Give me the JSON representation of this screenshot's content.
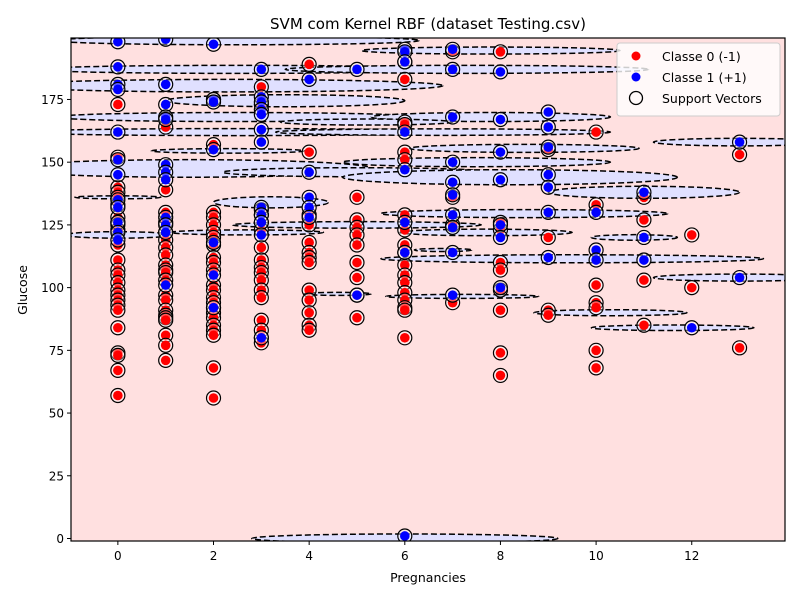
{
  "chart_data": {
    "type": "scatter",
    "title": "SVM com Kernel RBF (dataset Testing.csv)",
    "xlabel": "Pregnancies",
    "ylabel": "Glucose",
    "xlim": [
      -0.98,
      13.95
    ],
    "ylim": [
      -1,
      199.5
    ],
    "xticks": [
      0,
      2,
      4,
      6,
      8,
      10,
      12
    ],
    "yticks": [
      0,
      25,
      50,
      75,
      100,
      125,
      150,
      175
    ],
    "grid": false,
    "legend": {
      "placement": "top-right",
      "entries": [
        {
          "label": "Classe 0 (-1)",
          "marker": "dot",
          "color": "#ff0000"
        },
        {
          "label": "Classe 1 (+1)",
          "marker": "dot",
          "color": "#0000ff"
        },
        {
          "label": "Support Vectors",
          "marker": "ring",
          "color": "#000000"
        }
      ]
    },
    "colors": {
      "class0": "#ff0000",
      "class1": "#0000ff",
      "region0": "#ffe0e0",
      "region1": "#e0e0ff",
      "boundary": "#000000"
    },
    "decision_regions_class1": [
      {
        "cx": 2.5,
        "cy": 198.5,
        "rx": 3.8,
        "ry": 1.7
      },
      {
        "cx": 7.8,
        "cy": 194.5,
        "rx": 2.7,
        "ry": 1.4
      },
      {
        "cx": 2.5,
        "cy": 187,
        "rx": 4.2,
        "ry": 1.6
      },
      {
        "cx": 7.3,
        "cy": 187,
        "rx": 3.8,
        "ry": 1.6
      },
      {
        "cx": 2.3,
        "cy": 180.5,
        "rx": 4.5,
        "ry": 2.5
      },
      {
        "cx": 3.5,
        "cy": 174.5,
        "rx": 2.5,
        "ry": 2.4
      },
      {
        "cx": 2.5,
        "cy": 168,
        "rx": 3.8,
        "ry": 1.8
      },
      {
        "cx": 7.8,
        "cy": 168,
        "rx": 2.5,
        "ry": 1.8
      },
      {
        "cx": 5.2,
        "cy": 166,
        "rx": 1.8,
        "ry": 1.2
      },
      {
        "cx": 2.5,
        "cy": 162,
        "rx": 4.5,
        "ry": 1.4
      },
      {
        "cx": 6.8,
        "cy": 162,
        "rx": 3.5,
        "ry": 1.3
      },
      {
        "cx": 13.0,
        "cy": 158,
        "rx": 1.8,
        "ry": 1.5
      },
      {
        "cx": 8.5,
        "cy": 155.5,
        "rx": 2.4,
        "ry": 1.6
      },
      {
        "cx": 2.3,
        "cy": 154.5,
        "rx": 1.6,
        "ry": 0.9
      },
      {
        "cx": 1.5,
        "cy": 147.5,
        "rx": 3.8,
        "ry": 3.5
      },
      {
        "cx": 5.0,
        "cy": 146,
        "rx": 2.8,
        "ry": 1.8
      },
      {
        "cx": 7.5,
        "cy": 150,
        "rx": 2.8,
        "ry": 1.8
      },
      {
        "cx": 8.2,
        "cy": 144,
        "rx": 3.5,
        "ry": 3.0
      },
      {
        "cx": 11.0,
        "cy": 138,
        "rx": 2.0,
        "ry": 2.4
      },
      {
        "cx": 3.2,
        "cy": 134,
        "rx": 1.2,
        "ry": 2.2
      },
      {
        "cx": 0.0,
        "cy": 136,
        "rx": 0.9,
        "ry": 0.6
      },
      {
        "cx": 8.5,
        "cy": 129.5,
        "rx": 3.0,
        "ry": 1.6
      },
      {
        "cx": 5.0,
        "cy": 125,
        "rx": 2.6,
        "ry": 1.3
      },
      {
        "cx": 7.7,
        "cy": 122,
        "rx": 1.8,
        "ry": 1.3
      },
      {
        "cx": 2.7,
        "cy": 122,
        "rx": 1.6,
        "ry": 1.0
      },
      {
        "cx": 0.0,
        "cy": 121,
        "rx": 1.1,
        "ry": 1.3
      },
      {
        "cx": 10.8,
        "cy": 120,
        "rx": 0.9,
        "ry": 1.1
      },
      {
        "cx": 9.5,
        "cy": 111.5,
        "rx": 4.0,
        "ry": 1.6
      },
      {
        "cx": 6.8,
        "cy": 115,
        "rx": 0.6,
        "ry": 0.6
      },
      {
        "cx": 13.0,
        "cy": 104,
        "rx": 1.8,
        "ry": 1.4
      },
      {
        "cx": 7.2,
        "cy": 96.5,
        "rx": 1.6,
        "ry": 0.8
      },
      {
        "cx": 4.6,
        "cy": 97.5,
        "rx": 0.7,
        "ry": 0.6
      },
      {
        "cx": 10.3,
        "cy": 90,
        "rx": 1.6,
        "ry": 1.2
      },
      {
        "cx": 11.6,
        "cy": 84,
        "rx": 1.7,
        "ry": 1.1
      },
      {
        "cx": 6.0,
        "cy": 0,
        "rx": 3.2,
        "ry": 1.8
      }
    ],
    "series": [
      {
        "name": "Classe 0 (-1)",
        "color": "#ff0000",
        "points": [
          [
            0,
            173
          ],
          [
            0,
            152
          ],
          [
            0,
            140
          ],
          [
            0,
            138
          ],
          [
            0,
            136
          ],
          [
            0,
            133
          ],
          [
            0,
            128
          ],
          [
            0,
            126
          ],
          [
            0,
            125
          ],
          [
            0,
            123
          ],
          [
            0,
            117
          ],
          [
            0,
            111
          ],
          [
            0,
            107
          ],
          [
            0,
            105
          ],
          [
            0,
            102
          ],
          [
            0,
            99
          ],
          [
            0,
            97
          ],
          [
            0,
            95
          ],
          [
            0,
            93
          ],
          [
            0,
            91
          ],
          [
            0,
            84
          ],
          [
            0,
            74
          ],
          [
            0,
            73
          ],
          [
            0,
            67
          ],
          [
            0,
            57
          ],
          [
            1,
            164
          ],
          [
            1,
            139
          ],
          [
            1,
            130
          ],
          [
            1,
            126
          ],
          [
            1,
            122
          ],
          [
            1,
            119
          ],
          [
            1,
            116
          ],
          [
            1,
            113
          ],
          [
            1,
            109
          ],
          [
            1,
            107
          ],
          [
            1,
            106
          ],
          [
            1,
            103
          ],
          [
            1,
            97
          ],
          [
            1,
            95
          ],
          [
            1,
            91
          ],
          [
            1,
            89
          ],
          [
            1,
            88
          ],
          [
            1,
            87
          ],
          [
            1,
            81
          ],
          [
            1,
            77
          ],
          [
            1,
            71
          ],
          [
            2,
            175
          ],
          [
            2,
            157
          ],
          [
            2,
            130
          ],
          [
            2,
            128
          ],
          [
            2,
            125
          ],
          [
            2,
            122
          ],
          [
            2,
            120
          ],
          [
            2,
            117
          ],
          [
            2,
            112
          ],
          [
            2,
            110
          ],
          [
            2,
            107
          ],
          [
            2,
            101
          ],
          [
            2,
            99
          ],
          [
            2,
            96
          ],
          [
            2,
            94
          ],
          [
            2,
            92
          ],
          [
            2,
            90
          ],
          [
            2,
            88
          ],
          [
            2,
            85
          ],
          [
            2,
            83
          ],
          [
            2,
            81
          ],
          [
            2,
            68
          ],
          [
            2,
            56
          ],
          [
            3,
            180
          ],
          [
            3,
            173
          ],
          [
            3,
            131
          ],
          [
            3,
            129
          ],
          [
            3,
            126
          ],
          [
            3,
            123
          ],
          [
            3,
            116
          ],
          [
            3,
            111
          ],
          [
            3,
            108
          ],
          [
            3,
            106
          ],
          [
            3,
            103
          ],
          [
            3,
            99
          ],
          [
            3,
            96
          ],
          [
            3,
            87
          ],
          [
            3,
            83
          ],
          [
            3,
            80
          ],
          [
            3,
            78
          ],
          [
            4,
            189
          ],
          [
            4,
            154
          ],
          [
            4,
            129
          ],
          [
            4,
            125
          ],
          [
            4,
            118
          ],
          [
            4,
            114
          ],
          [
            4,
            112
          ],
          [
            4,
            110
          ],
          [
            4,
            99
          ],
          [
            4,
            95
          ],
          [
            4,
            90
          ],
          [
            4,
            85
          ],
          [
            4,
            83
          ],
          [
            5,
            136
          ],
          [
            5,
            127
          ],
          [
            5,
            124
          ],
          [
            5,
            121
          ],
          [
            5,
            117
          ],
          [
            5,
            110
          ],
          [
            5,
            104
          ],
          [
            5,
            97
          ],
          [
            5,
            88
          ],
          [
            6,
            190
          ],
          [
            6,
            183
          ],
          [
            6,
            166
          ],
          [
            6,
            165
          ],
          [
            6,
            154
          ],
          [
            6,
            151
          ],
          [
            6,
            129
          ],
          [
            6,
            123
          ],
          [
            6,
            117
          ],
          [
            6,
            114
          ],
          [
            6,
            109
          ],
          [
            6,
            105
          ],
          [
            6,
            102
          ],
          [
            6,
            98
          ],
          [
            6,
            95
          ],
          [
            6,
            92
          ],
          [
            6,
            91
          ],
          [
            6,
            80
          ],
          [
            7,
            194
          ],
          [
            7,
            136
          ],
          [
            7,
            125
          ],
          [
            7,
            94
          ],
          [
            8,
            194
          ],
          [
            8,
            126
          ],
          [
            8,
            123
          ],
          [
            8,
            110
          ],
          [
            8,
            107
          ],
          [
            8,
            99
          ],
          [
            8,
            91
          ],
          [
            8,
            74
          ],
          [
            8,
            65
          ],
          [
            9,
            155
          ],
          [
            9,
            120
          ],
          [
            9,
            91
          ],
          [
            9,
            89
          ],
          [
            10,
            162
          ],
          [
            10,
            133
          ],
          [
            10,
            101
          ],
          [
            10,
            94
          ],
          [
            10,
            92
          ],
          [
            10,
            75
          ],
          [
            10,
            68
          ],
          [
            11,
            136
          ],
          [
            11,
            127
          ],
          [
            11,
            103
          ],
          [
            11,
            85
          ],
          [
            12,
            121
          ],
          [
            12,
            100
          ],
          [
            13,
            153
          ],
          [
            13,
            76
          ]
        ]
      },
      {
        "name": "Classe 1 (+1)",
        "color": "#0000ff",
        "points": [
          [
            0,
            198
          ],
          [
            0,
            188
          ],
          [
            0,
            181
          ],
          [
            0,
            179
          ],
          [
            0,
            162
          ],
          [
            0,
            151
          ],
          [
            0,
            145
          ],
          [
            0,
            135
          ],
          [
            0,
            132
          ],
          [
            0,
            126
          ],
          [
            0,
            122
          ],
          [
            0,
            119
          ],
          [
            1,
            199
          ],
          [
            1,
            181
          ],
          [
            1,
            173
          ],
          [
            1,
            168
          ],
          [
            1,
            167
          ],
          [
            1,
            149
          ],
          [
            1,
            146
          ],
          [
            1,
            143
          ],
          [
            1,
            128
          ],
          [
            1,
            125
          ],
          [
            1,
            122
          ],
          [
            1,
            101
          ],
          [
            2,
            197
          ],
          [
            2,
            175
          ],
          [
            2,
            174
          ],
          [
            2,
            155
          ],
          [
            2,
            118
          ],
          [
            2,
            105
          ],
          [
            2,
            92
          ],
          [
            3,
            187
          ],
          [
            3,
            176
          ],
          [
            3,
            174
          ],
          [
            3,
            171
          ],
          [
            3,
            169
          ],
          [
            3,
            163
          ],
          [
            3,
            158
          ],
          [
            3,
            132
          ],
          [
            3,
            129
          ],
          [
            3,
            126
          ],
          [
            3,
            121
          ],
          [
            3,
            80
          ],
          [
            4,
            183
          ],
          [
            4,
            146
          ],
          [
            4,
            136
          ],
          [
            4,
            132
          ],
          [
            4,
            128
          ],
          [
            5,
            187
          ],
          [
            5,
            97
          ],
          [
            6,
            195
          ],
          [
            6,
            194
          ],
          [
            6,
            190
          ],
          [
            6,
            162
          ],
          [
            6,
            147
          ],
          [
            6,
            126
          ],
          [
            6,
            114
          ],
          [
            6,
            1
          ],
          [
            7,
            195
          ],
          [
            7,
            187
          ],
          [
            7,
            168
          ],
          [
            7,
            150
          ],
          [
            7,
            142
          ],
          [
            7,
            137
          ],
          [
            7,
            129
          ],
          [
            7,
            124
          ],
          [
            7,
            114
          ],
          [
            7,
            97
          ],
          [
            8,
            186
          ],
          [
            8,
            167
          ],
          [
            8,
            154
          ],
          [
            8,
            143
          ],
          [
            8,
            125
          ],
          [
            8,
            120
          ],
          [
            8,
            100
          ],
          [
            9,
            170
          ],
          [
            9,
            164
          ],
          [
            9,
            156
          ],
          [
            9,
            145
          ],
          [
            9,
            140
          ],
          [
            9,
            130
          ],
          [
            9,
            112
          ],
          [
            10,
            130
          ],
          [
            10,
            115
          ],
          [
            10,
            111
          ],
          [
            11,
            138
          ],
          [
            11,
            120
          ],
          [
            11,
            111
          ],
          [
            12,
            84
          ],
          [
            13,
            158
          ],
          [
            13,
            104
          ]
        ]
      }
    ]
  }
}
